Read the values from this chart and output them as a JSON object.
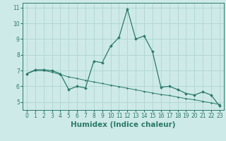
{
  "title": "",
  "xlabel": "Humidex (Indice chaleur)",
  "ylabel": "",
  "bg_color": "#ceeae8",
  "line_color": "#2a7a6a",
  "grid_color": "#aed4d0",
  "x_humidex": [
    0,
    1,
    2,
    3,
    4,
    5,
    6,
    7,
    8,
    9,
    10,
    11,
    12,
    13,
    14,
    15,
    16,
    17,
    18,
    19,
    20,
    21,
    22,
    23
  ],
  "y_curve": [
    6.8,
    7.05,
    7.05,
    7.0,
    6.8,
    5.8,
    6.0,
    5.9,
    7.6,
    7.5,
    8.55,
    9.1,
    10.9,
    9.0,
    9.2,
    8.2,
    5.95,
    6.0,
    5.8,
    5.55,
    5.45,
    5.65,
    5.45,
    4.75
  ],
  "y_trend": [
    6.8,
    7.0,
    7.0,
    6.9,
    6.75,
    6.6,
    6.5,
    6.38,
    6.28,
    6.18,
    6.08,
    5.98,
    5.88,
    5.78,
    5.68,
    5.58,
    5.48,
    5.42,
    5.32,
    5.22,
    5.15,
    5.05,
    4.95,
    4.85
  ],
  "ylim": [
    4.5,
    11.3
  ],
  "xlim": [
    -0.5,
    23.5
  ],
  "yticks": [
    5,
    6,
    7,
    8,
    9,
    10,
    11
  ],
  "xticks": [
    0,
    1,
    2,
    3,
    4,
    5,
    6,
    7,
    8,
    9,
    10,
    11,
    12,
    13,
    14,
    15,
    16,
    17,
    18,
    19,
    20,
    21,
    22,
    23
  ],
  "tick_fontsize": 5.5,
  "label_fontsize": 7.5
}
